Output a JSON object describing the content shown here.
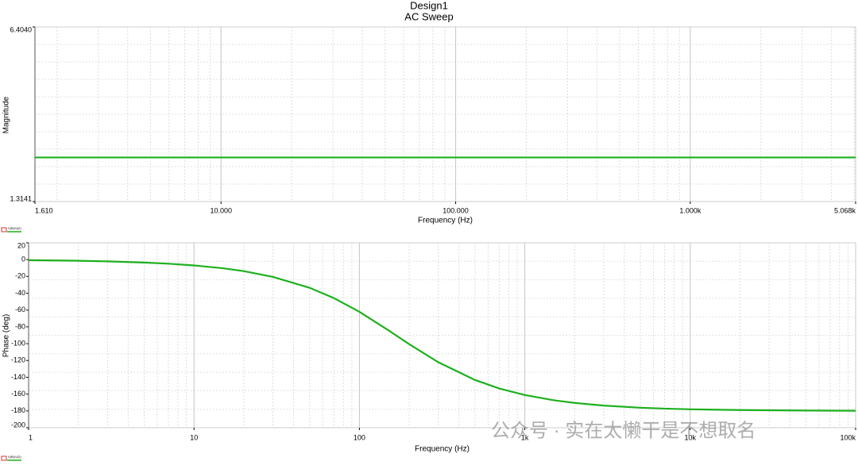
{
  "chart_data": [
    {
      "type": "line",
      "title": "Design1",
      "subtitle": "AC Sweep",
      "xlabel": "Frequency (Hz)",
      "ylabel": "Magnitude",
      "xscale": "log",
      "grid": true,
      "x": [
        1.61,
        5068
      ],
      "series": [
        {
          "name": "V(B)/V(2)",
          "color": "#1db01d",
          "values": [
            2.6,
            2.6
          ]
        }
      ],
      "xlim": [
        1.61,
        5068
      ],
      "xticks": [
        {
          "value": 1.61,
          "label": "1.610"
        },
        {
          "value": 10,
          "label": "10.000"
        },
        {
          "value": 100,
          "label": "100.000"
        },
        {
          "value": 1000,
          "label": "1.000k"
        },
        {
          "value": 5068,
          "label": "5.068k"
        }
      ],
      "ylim": [
        1.3141,
        6.404
      ],
      "yticks": [
        {
          "value": 1.3141,
          "label": "1.3141"
        },
        {
          "value": 6.404,
          "label": "6.4040"
        }
      ]
    },
    {
      "type": "line",
      "xlabel": "Frequency (Hz)",
      "ylabel": "Phase (deg)",
      "xscale": "log",
      "grid": true,
      "x": [
        1,
        1.5,
        2,
        3,
        5,
        7,
        10,
        15,
        20,
        30,
        50,
        70,
        100,
        150,
        200,
        300,
        500,
        700,
        1000,
        1500,
        2000,
        3000,
        5000,
        7000,
        10000,
        20000,
        50000,
        100000
      ],
      "series": [
        {
          "name": "V(B)/V(2)",
          "color": "#1db01d",
          "values": [
            -0.69,
            -1.04,
            -1.38,
            -2.07,
            -3.45,
            -4.83,
            -6.9,
            -10.3,
            -13.7,
            -20.5,
            -33.5,
            -45.7,
            -62.1,
            -84.2,
            -100.6,
            -122.1,
            -143.2,
            -153.3,
            -161.1,
            -167.4,
            -170.5,
            -173.7,
            -176.2,
            -177.3,
            -178.1,
            -179.0,
            -179.6,
            -179.8
          ]
        }
      ],
      "xlim": [
        1,
        100000
      ],
      "xticks": [
        1,
        10,
        100,
        {
          "value": 1000,
          "label": "1k"
        },
        {
          "value": 10000,
          "label": "10k"
        },
        {
          "value": 100000,
          "label": "100k"
        }
      ],
      "ylim": [
        -200,
        20
      ],
      "yticks": [
        20,
        0,
        -20,
        -40,
        -60,
        -80,
        -100,
        -120,
        -140,
        -160,
        -180,
        -200
      ]
    }
  ],
  "watermark": "公众号 · 实在太懒干是不想取名"
}
